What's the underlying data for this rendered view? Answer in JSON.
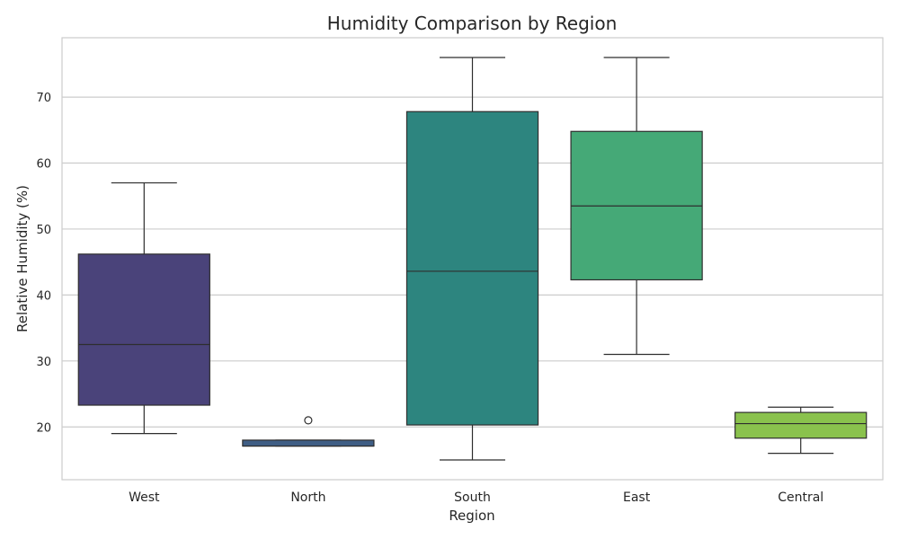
{
  "chart_data": {
    "type": "box",
    "title": "Humidity Comparison by Region",
    "xlabel": "Region",
    "ylabel": "Relative Humidity (%)",
    "ylim": [
      12,
      79
    ],
    "yticks": [
      20,
      30,
      40,
      50,
      60,
      70
    ],
    "grid": "horizontal",
    "categories": [
      "West",
      "North",
      "South",
      "East",
      "Central"
    ],
    "boxes": [
      {
        "category": "West",
        "whisker_low": 19,
        "q1": 23.3,
        "median": 32.5,
        "q3": 46.2,
        "whisker_high": 57,
        "outliers": [],
        "color": "#4a437a"
      },
      {
        "category": "North",
        "whisker_low": 17.1,
        "q1": 17.1,
        "median": 17.1,
        "q3": 18,
        "whisker_high": 18,
        "outliers": [
          21
        ],
        "color": "#3f5e85"
      },
      {
        "category": "South",
        "whisker_low": 15,
        "q1": 20.3,
        "median": 43.6,
        "q3": 67.8,
        "whisker_high": 76,
        "outliers": [],
        "color": "#2d857f"
      },
      {
        "category": "East",
        "whisker_low": 31,
        "q1": 42.3,
        "median": 53.5,
        "q3": 64.8,
        "whisker_high": 76,
        "outliers": [],
        "color": "#45a977"
      },
      {
        "category": "Central",
        "whisker_low": 16,
        "q1": 18.3,
        "median": 20.5,
        "q3": 22.2,
        "whisker_high": 23,
        "outliers": [],
        "color": "#8ac24d"
      }
    ]
  }
}
